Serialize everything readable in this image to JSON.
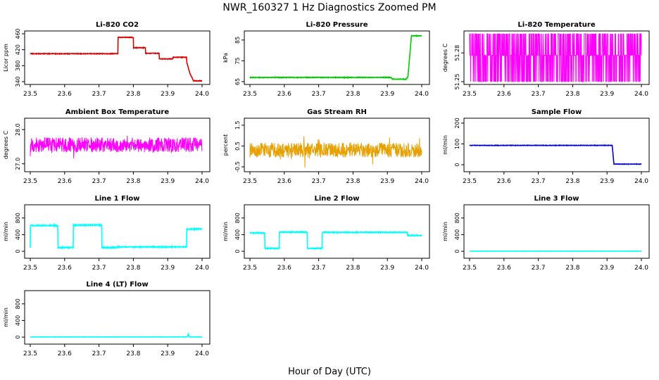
{
  "figure": {
    "title": "NWR_160327  1 Hz Diagnostics Zoomed PM",
    "xlabel": "Hour of Day (UTC)"
  },
  "colors": {
    "red": "#dd0000",
    "green": "#00cc00",
    "magenta": "#ff00ff",
    "orange": "#e6a000",
    "blue": "#0000cc",
    "cyan": "#00ffff"
  },
  "chart_data": [
    {
      "type": "line",
      "title": "Li-820 CO2",
      "ylabel": "Licor ppm",
      "xlim": [
        23.5,
        24.0
      ],
      "ylim": [
        340,
        460
      ],
      "xticks": [
        "23.5",
        "23.6",
        "23.7",
        "23.8",
        "23.9",
        "24.0"
      ],
      "yticks": [
        {
          "v": 340,
          "label": "340"
        },
        {
          "v": 380,
          "label": "380"
        },
        {
          "v": 420,
          "label": "420"
        },
        {
          "v": 460,
          "label": "460"
        }
      ],
      "color": "red",
      "style": "line",
      "noise": 0.7,
      "x": [
        23.5,
        23.755,
        23.755,
        23.8,
        23.8,
        23.835,
        23.835,
        23.875,
        23.875,
        23.915,
        23.915,
        23.955,
        23.955,
        23.965,
        23.975,
        24.0
      ],
      "y": [
        410,
        410,
        451,
        451,
        425,
        425,
        411,
        411,
        397,
        397,
        401,
        401,
        390,
        360,
        342,
        342
      ]
    },
    {
      "type": "line",
      "title": "Li-820 Pressure",
      "ylabel": "kPa",
      "xlim": [
        23.5,
        24.0
      ],
      "ylim": [
        65,
        88
      ],
      "xticks": [
        "23.5",
        "23.6",
        "23.7",
        "23.8",
        "23.9",
        "24.0"
      ],
      "yticks": [
        {
          "v": 65,
          "label": "65"
        },
        {
          "v": 75,
          "label": "75"
        },
        {
          "v": 85,
          "label": "85"
        }
      ],
      "color": "green",
      "style": "line",
      "noise": 0.15,
      "x": [
        23.5,
        23.91,
        23.915,
        23.955,
        23.96,
        23.97,
        23.98,
        24.0
      ],
      "y": [
        67.0,
        67.0,
        66.2,
        66.2,
        67.5,
        87.0,
        87.0,
        87.0
      ]
    },
    {
      "type": "line",
      "title": "Li-820 Temperature",
      "ylabel": "degrees C",
      "xlim": [
        23.5,
        24.0
      ],
      "ylim": [
        51.25,
        51.3
      ],
      "xticks": [
        "23.5",
        "23.6",
        "23.7",
        "23.8",
        "23.9",
        "24.0"
      ],
      "yticks": [
        {
          "v": 51.25,
          "label": "51.25"
        },
        {
          "v": 51.28,
          "label": "51.28"
        }
      ],
      "color": "magenta",
      "style": "levels",
      "seed": 11,
      "level_values": [
        51.3,
        51.2775,
        51.25
      ],
      "x": [
        23.5,
        24.0
      ],
      "y": [
        51.2775,
        51.2775
      ]
    },
    {
      "type": "line",
      "title": "Ambient Box Temperature",
      "ylabel": "degrees C",
      "xlim": [
        23.5,
        24.0
      ],
      "ylim": [
        26.85,
        28.25
      ],
      "xticks": [
        "23.5",
        "23.6",
        "23.7",
        "23.8",
        "23.9",
        "24.0"
      ],
      "yticks": [
        {
          "v": 27.0,
          "label": "27.0"
        },
        {
          "v": 28.0,
          "label": "28.0"
        }
      ],
      "color": "magenta",
      "style": "noisy",
      "seed": 23,
      "noise": 0.22,
      "x": [
        23.5,
        24.0
      ],
      "y": [
        27.55,
        27.55
      ]
    },
    {
      "type": "line",
      "title": "Gas Stream RH",
      "ylabel": "percent",
      "xlim": [
        23.5,
        24.0
      ],
      "ylim": [
        -0.6,
        1.7
      ],
      "xticks": [
        "23.5",
        "23.6",
        "23.7",
        "23.8",
        "23.9",
        "24.0"
      ],
      "yticks": [
        {
          "v": -0.5,
          "label": "-0.5"
        },
        {
          "v": 0.5,
          "label": "0.5"
        },
        {
          "v": 1.5,
          "label": "1.5"
        }
      ],
      "color": "orange",
      "style": "noisy",
      "seed": 37,
      "noise": 0.35,
      "x": [
        23.5,
        24.0
      ],
      "y": [
        0.3,
        0.3
      ]
    },
    {
      "type": "line",
      "title": "Sample Flow",
      "ylabel": "ml/min",
      "xlim": [
        23.5,
        24.0
      ],
      "ylim": [
        -20,
        210
      ],
      "xticks": [
        "23.5",
        "23.6",
        "23.7",
        "23.8",
        "23.9",
        "24.0"
      ],
      "yticks": [
        {
          "v": 0,
          "label": "0"
        },
        {
          "v": 100,
          "label": "100"
        },
        {
          "v": 200,
          "label": "200"
        }
      ],
      "color": "blue",
      "style": "line",
      "noise": 1.0,
      "x": [
        23.5,
        23.915,
        23.92,
        24.0
      ],
      "y": [
        93,
        93,
        3,
        3
      ]
    },
    {
      "type": "line",
      "title": "Line 1 Flow",
      "ylabel": "ml/min",
      "xlim": [
        23.5,
        24.0
      ],
      "ylim": [
        -100,
        1050
      ],
      "xticks": [
        "23.5",
        "23.6",
        "23.7",
        "23.8",
        "23.9",
        "24.0"
      ],
      "yticks": [
        {
          "v": 0,
          "label": "0"
        },
        {
          "v": 400,
          "label": "400"
        },
        {
          "v": 800,
          "label": "800"
        }
      ],
      "color": "cyan",
      "style": "line",
      "noise": 12,
      "x": [
        23.5,
        23.5,
        23.58,
        23.58,
        23.625,
        23.625,
        23.708,
        23.708,
        23.75,
        23.75,
        23.955,
        23.955,
        24.0
      ],
      "y": [
        100,
        620,
        620,
        90,
        90,
        630,
        630,
        90,
        90,
        105,
        105,
        530,
        540
      ]
    },
    {
      "type": "line",
      "title": "Line 2 Flow",
      "ylabel": "ml/min",
      "xlim": [
        23.5,
        24.0
      ],
      "ylim": [
        -100,
        1050
      ],
      "xticks": [
        "23.5",
        "23.6",
        "23.7",
        "23.8",
        "23.9",
        "24.0"
      ],
      "yticks": [
        {
          "v": 0,
          "label": "0"
        },
        {
          "v": 400,
          "label": "400"
        },
        {
          "v": 800,
          "label": "800"
        }
      ],
      "color": "cyan",
      "style": "line",
      "noise": 10,
      "x": [
        23.5,
        23.543,
        23.543,
        23.585,
        23.585,
        23.667,
        23.667,
        23.71,
        23.71,
        23.958,
        23.958,
        24.0
      ],
      "y": [
        440,
        440,
        70,
        70,
        460,
        460,
        70,
        70,
        455,
        455,
        380,
        380
      ]
    },
    {
      "type": "line",
      "title": "Line 3 Flow",
      "ylabel": "ml/min",
      "xlim": [
        23.5,
        24.0
      ],
      "ylim": [
        -100,
        1050
      ],
      "xticks": [
        "23.5",
        "23.6",
        "23.7",
        "23.8",
        "23.9",
        "24.0"
      ],
      "yticks": [
        {
          "v": 0,
          "label": "0"
        },
        {
          "v": 400,
          "label": "400"
        },
        {
          "v": 800,
          "label": "800"
        }
      ],
      "color": "cyan",
      "style": "line",
      "noise": 2,
      "x": [
        23.5,
        24.0
      ],
      "y": [
        3,
        3
      ]
    },
    {
      "type": "line",
      "title": "Line 4 (LT) Flow",
      "ylabel": "ml/min",
      "xlim": [
        23.5,
        24.0
      ],
      "ylim": [
        -100,
        1050
      ],
      "xticks": [
        "23.5",
        "23.6",
        "23.7",
        "23.8",
        "23.9",
        "24.0"
      ],
      "yticks": [
        {
          "v": 0,
          "label": "0"
        },
        {
          "v": 400,
          "label": "400"
        },
        {
          "v": 800,
          "label": "800"
        }
      ],
      "color": "cyan",
      "style": "line",
      "noise": 3,
      "x": [
        23.5,
        23.957,
        23.96,
        23.963,
        24.0
      ],
      "y": [
        5,
        5,
        80,
        5,
        5
      ]
    }
  ]
}
